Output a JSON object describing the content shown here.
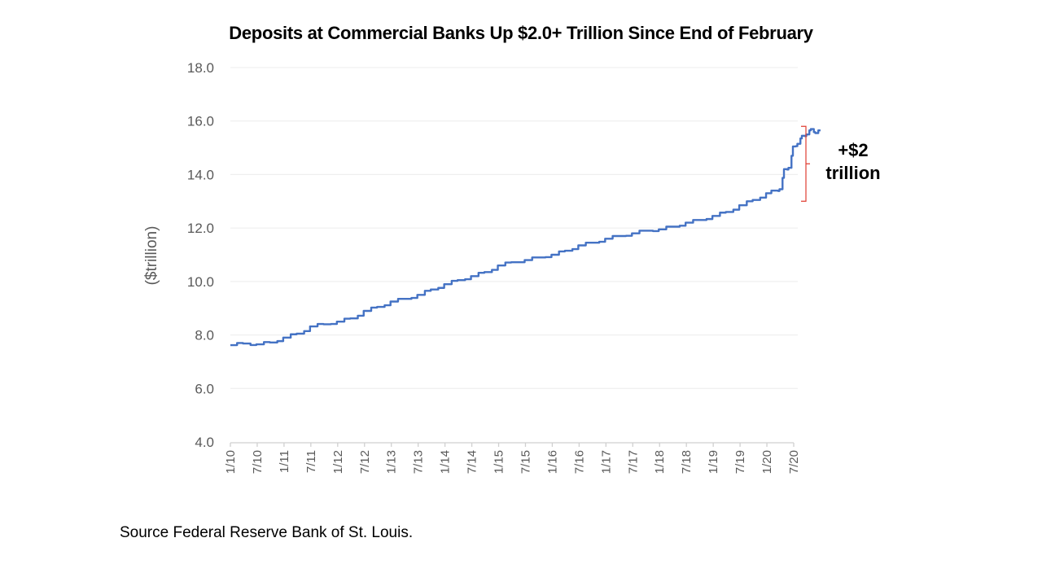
{
  "chart_data": {
    "type": "line",
    "title": "Deposits at Commercial Banks Up $2.0+ Trillion Since End of February",
    "xlabel": "",
    "ylabel": "($trillion)",
    "ylim": [
      4.0,
      18.0
    ],
    "yticks": [
      "4.0",
      "6.0",
      "8.0",
      "10.0",
      "12.0",
      "14.0",
      "16.0",
      "18.0"
    ],
    "ytick_values": [
      4,
      6,
      8,
      10,
      12,
      14,
      16,
      18
    ],
    "xticks": [
      "1/10",
      "7/10",
      "1/11",
      "7/11",
      "1/12",
      "7/12",
      "1/13",
      "7/13",
      "1/14",
      "7/14",
      "1/15",
      "7/15",
      "1/16",
      "7/16",
      "1/17",
      "7/17",
      "1/18",
      "7/18",
      "1/19",
      "7/19",
      "1/20",
      "7/20"
    ],
    "grid": true,
    "series": [
      {
        "name": "Deposits at Commercial Banks",
        "color": "#4472C4",
        "x_months_since_jan_2010": [
          0,
          3,
          6,
          9,
          12,
          15,
          18,
          21,
          24,
          27,
          30,
          33,
          36,
          39,
          42,
          45,
          48,
          51,
          54,
          57,
          60,
          63,
          66,
          69,
          72,
          75,
          78,
          81,
          84,
          87,
          90,
          93,
          96,
          99,
          102,
          105,
          108,
          111,
          114,
          117,
          120,
          122,
          123,
          124,
          125,
          126,
          127,
          128,
          129,
          130,
          131,
          132
        ],
        "values": [
          7.62,
          7.68,
          7.65,
          7.72,
          7.9,
          8.05,
          8.32,
          8.4,
          8.5,
          8.62,
          8.9,
          9.05,
          9.25,
          9.35,
          9.5,
          9.7,
          9.9,
          10.05,
          10.2,
          10.35,
          10.6,
          10.72,
          10.8,
          10.9,
          11.0,
          11.15,
          11.35,
          11.45,
          11.6,
          11.7,
          11.8,
          11.9,
          11.95,
          12.05,
          12.2,
          12.3,
          12.45,
          12.6,
          12.85,
          13.05,
          13.3,
          13.4,
          13.45,
          14.2,
          14.25,
          15.05,
          15.15,
          15.45,
          15.5,
          15.7,
          15.55,
          15.65
        ]
      }
    ],
    "annotations": [
      {
        "text_line1": "+$2",
        "text_line2": "trillion",
        "bracket_from": 13.0,
        "bracket_to": 15.8,
        "bracket_color": "#E03C31"
      }
    ],
    "legend": "none"
  },
  "source": "Source Federal Reserve Bank of St. Louis."
}
